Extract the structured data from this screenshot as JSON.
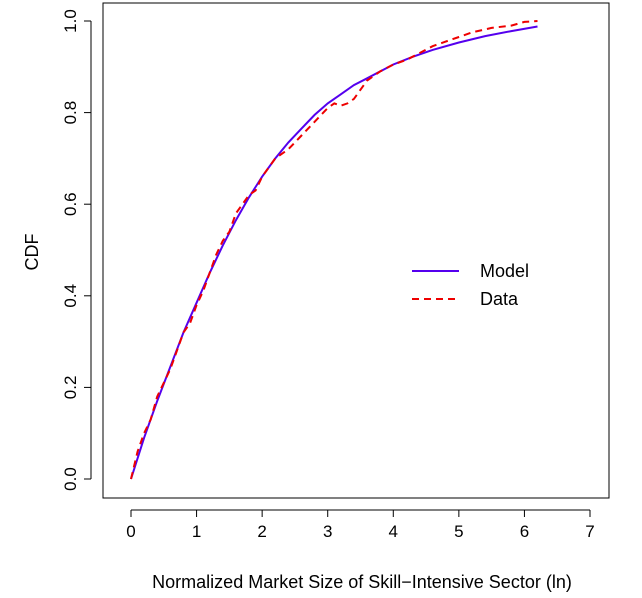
{
  "chart_data": {
    "type": "line",
    "title": "",
    "xlabel": "Normalized Market Size of Skill−Intensive Sector (ln)",
    "ylabel": "CDF",
    "xlim": [
      0,
      7
    ],
    "ylim": [
      0,
      1
    ],
    "x_ticks": [
      "0",
      "1",
      "2",
      "3",
      "4",
      "5",
      "6",
      "7"
    ],
    "y_ticks": [
      "0.0",
      "0.2",
      "0.4",
      "0.6",
      "0.8",
      "1.0"
    ],
    "grid": false,
    "legend_position": "right",
    "series": [
      {
        "name": "Model",
        "color": "#5500ee",
        "style": "solid",
        "x": [
          0,
          0.2,
          0.4,
          0.6,
          0.8,
          1.0,
          1.2,
          1.4,
          1.6,
          1.8,
          2.0,
          2.2,
          2.4,
          2.6,
          2.8,
          3.0,
          3.2,
          3.4,
          3.6,
          3.8,
          4.0,
          4.3,
          4.6,
          5.0,
          5.4,
          5.8,
          6.2
        ],
        "y": [
          0.0,
          0.09,
          0.17,
          0.245,
          0.32,
          0.385,
          0.45,
          0.51,
          0.565,
          0.615,
          0.66,
          0.7,
          0.735,
          0.765,
          0.795,
          0.82,
          0.84,
          0.86,
          0.875,
          0.89,
          0.905,
          0.922,
          0.937,
          0.953,
          0.967,
          0.978,
          0.988
        ]
      },
      {
        "name": "Data",
        "color": "#ee0000",
        "style": "dashed",
        "x": [
          0,
          0.1,
          0.2,
          0.3,
          0.4,
          0.5,
          0.6,
          0.7,
          0.8,
          0.9,
          1.0,
          1.1,
          1.2,
          1.3,
          1.4,
          1.5,
          1.6,
          1.7,
          1.8,
          1.9,
          2.0,
          2.2,
          2.4,
          2.6,
          2.8,
          3.0,
          3.1,
          3.2,
          3.3,
          3.4,
          3.5,
          3.6,
          3.7,
          3.8,
          4.0,
          4.2,
          4.4,
          4.6,
          4.8,
          5.0,
          5.2,
          5.5,
          5.8,
          6.0,
          6.2
        ],
        "y": [
          0.0,
          0.06,
          0.1,
          0.13,
          0.18,
          0.21,
          0.24,
          0.28,
          0.32,
          0.34,
          0.38,
          0.41,
          0.45,
          0.49,
          0.52,
          0.54,
          0.58,
          0.6,
          0.62,
          0.63,
          0.66,
          0.7,
          0.72,
          0.75,
          0.78,
          0.81,
          0.82,
          0.815,
          0.82,
          0.83,
          0.85,
          0.87,
          0.88,
          0.89,
          0.905,
          0.915,
          0.93,
          0.945,
          0.955,
          0.965,
          0.975,
          0.985,
          0.99,
          0.998,
          1.0
        ]
      }
    ]
  }
}
